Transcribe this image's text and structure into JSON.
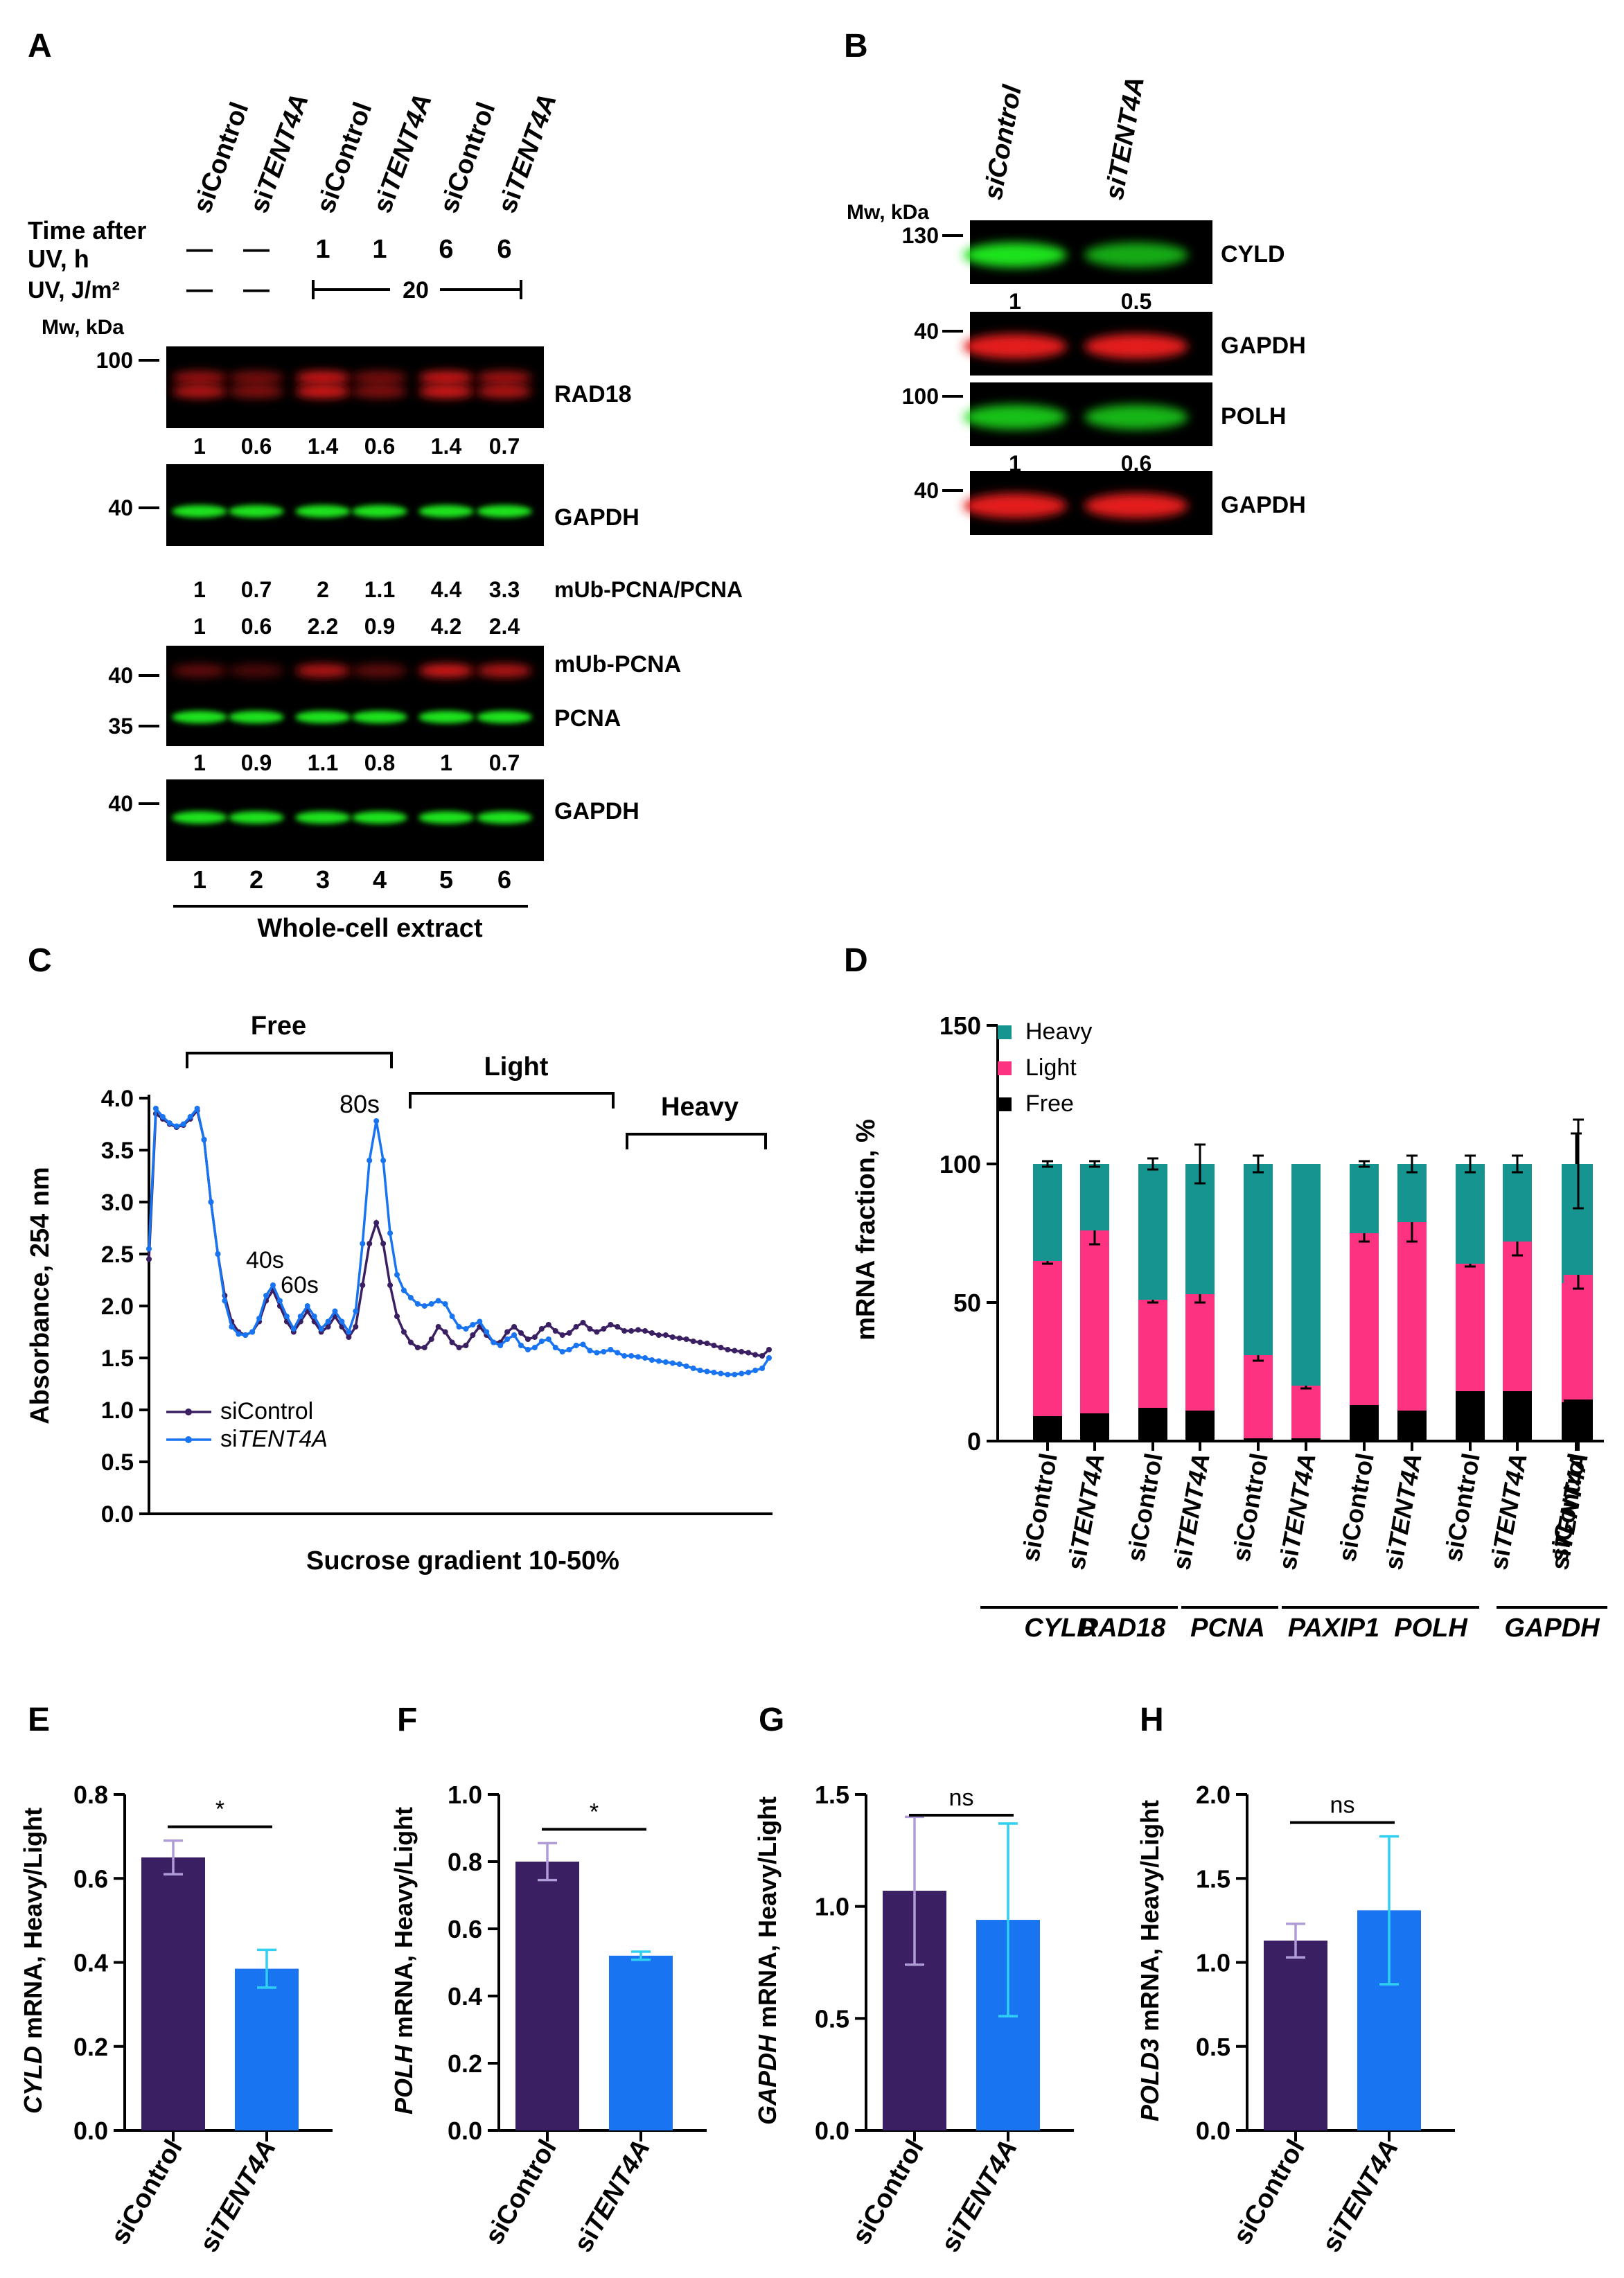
{
  "panel_letters": [
    "A",
    "B",
    "C",
    "D",
    "E",
    "F",
    "G",
    "H"
  ],
  "colors": {
    "dark_purple": "#3a1f62",
    "blue": "#1874f0",
    "teal": "#16948f",
    "pink": "#fd3280",
    "black": "#000000",
    "lightpurple": "#b09cd7",
    "cyan": "#2fd0f2",
    "blot_red": "#e41a1a",
    "blot_green": "#1be31b"
  },
  "panel_A": {
    "lanes_labels": [
      "siControl",
      "siTENT4A",
      "siControl",
      "siTENT4A",
      "siControl",
      "siTENT4A"
    ],
    "time_label_1": "Time after",
    "time_label_2": "UV, h",
    "time_values": [
      "—",
      "—",
      "1",
      "1",
      "6",
      "6"
    ],
    "uv_label": "UV, J/m²",
    "uv_values": [
      "—",
      "—"
    ],
    "uv_dose": "20",
    "mw_label": "Mw, kDa",
    "blots": [
      {
        "name": "RAD18",
        "mw": [
          "100"
        ],
        "quant": [
          "1",
          "0.6",
          "1.4",
          "0.6",
          "1.4",
          "0.7"
        ]
      },
      {
        "name": "GAPDH",
        "mw": [
          "40"
        ]
      },
      {
        "ratio_label": "mUb-PCNA/PCNA",
        "ratio": [
          "1",
          "0.7",
          "2",
          "1.1",
          "4.4",
          "3.3"
        ],
        "quant": [
          "1",
          "0.6",
          "2.2",
          "0.9",
          "4.2",
          "2.4"
        ]
      },
      {
        "name": "mUb-PCNA",
        "name2": "PCNA",
        "mw": [
          "40",
          "35"
        ],
        "quant": [
          "1",
          "0.9",
          "1.1",
          "0.8",
          "1",
          "0.7"
        ]
      },
      {
        "name": "GAPDH",
        "mw": [
          "40"
        ]
      }
    ],
    "lane_numbers": [
      "1",
      "2",
      "3",
      "4",
      "5",
      "6"
    ],
    "footer": "Whole-cell extract"
  },
  "panel_B": {
    "lanes_labels": [
      "siControl",
      "siTENT4A"
    ],
    "mw_label": "Mw, kDa",
    "blots": [
      {
        "name": "CYLD",
        "mw": "130",
        "quant": [
          "1",
          "0.5"
        ]
      },
      {
        "name": "GAPDH",
        "mw": "40"
      },
      {
        "name": "POLH",
        "mw": "100",
        "quant": [
          "1",
          "0.6"
        ]
      },
      {
        "name": "GAPDH",
        "mw": "40"
      }
    ]
  },
  "chart_data": [
    {
      "panel": "C",
      "type": "line",
      "xlabel": "Sucrose gradient 10-50%",
      "ylabel": "Absorbance, 254 nm",
      "ylim": [
        0,
        4.0
      ],
      "yticks": [
        "0.0",
        "0.5",
        "1.0",
        "1.5",
        "2.0",
        "2.5",
        "3.0",
        "3.5",
        "4.0"
      ],
      "fractions": [
        "Free",
        "Light",
        "Heavy"
      ],
      "peak_labels": [
        "80s",
        "40s",
        "60s"
      ],
      "series": [
        {
          "name": "siControl",
          "color": "#3a1f62",
          "values": [
            2.45,
            3.85,
            3.8,
            3.75,
            3.72,
            3.74,
            3.8,
            3.88,
            3.6,
            3.0,
            2.5,
            2.1,
            1.85,
            1.75,
            1.72,
            1.75,
            1.85,
            2.05,
            2.15,
            2.0,
            1.85,
            1.75,
            1.85,
            1.95,
            1.85,
            1.75,
            1.8,
            1.9,
            1.8,
            1.7,
            1.8,
            2.2,
            2.6,
            2.8,
            2.6,
            2.2,
            1.9,
            1.75,
            1.65,
            1.6,
            1.6,
            1.68,
            1.8,
            1.75,
            1.65,
            1.6,
            1.62,
            1.72,
            1.8,
            1.72,
            1.65,
            1.65,
            1.75,
            1.8,
            1.74,
            1.68,
            1.7,
            1.78,
            1.82,
            1.76,
            1.72,
            1.74,
            1.8,
            1.84,
            1.78,
            1.75,
            1.78,
            1.82,
            1.8,
            1.76,
            1.76,
            1.77,
            1.76,
            1.74,
            1.72,
            1.72,
            1.7,
            1.69,
            1.68,
            1.66,
            1.65,
            1.64,
            1.62,
            1.6,
            1.58,
            1.57,
            1.56,
            1.55,
            1.53,
            1.52,
            1.58
          ]
        },
        {
          "name": "siTENT4A",
          "color": "#1874f0",
          "values": [
            2.55,
            3.9,
            3.82,
            3.76,
            3.73,
            3.75,
            3.82,
            3.9,
            3.6,
            3.0,
            2.5,
            2.05,
            1.8,
            1.73,
            1.72,
            1.75,
            1.88,
            2.1,
            2.2,
            2.05,
            1.9,
            1.78,
            1.9,
            2.0,
            1.9,
            1.78,
            1.85,
            1.95,
            1.85,
            1.75,
            1.95,
            2.6,
            3.4,
            3.78,
            3.4,
            2.7,
            2.3,
            2.15,
            2.08,
            2.02,
            2.0,
            2.02,
            2.05,
            2.02,
            1.9,
            1.8,
            1.78,
            1.82,
            1.85,
            1.75,
            1.65,
            1.62,
            1.68,
            1.72,
            1.62,
            1.58,
            1.6,
            1.66,
            1.68,
            1.6,
            1.56,
            1.58,
            1.62,
            1.63,
            1.57,
            1.55,
            1.56,
            1.58,
            1.55,
            1.52,
            1.52,
            1.51,
            1.5,
            1.48,
            1.47,
            1.46,
            1.45,
            1.44,
            1.42,
            1.4,
            1.38,
            1.37,
            1.36,
            1.35,
            1.34,
            1.34,
            1.35,
            1.36,
            1.38,
            1.4,
            1.5
          ]
        }
      ]
    },
    {
      "panel": "D",
      "type": "bar",
      "stacked": true,
      "ylabel": "mRNA fraction, %",
      "ylim": [
        0,
        150
      ],
      "yticks": [
        "0",
        "50",
        "100",
        "150"
      ],
      "categories": [
        "siControl",
        "siTENT4A",
        "siControl",
        "siTENT4A",
        "siControl",
        "siTENT4A",
        "siControl",
        "siTENT4A",
        "siControl",
        "siTENT4A",
        "siControl",
        "siTENT4A"
      ],
      "groups": [
        "CYLD",
        "RAD18",
        "PCNA",
        "PAXIP1",
        "POLH",
        "GAPDH"
      ],
      "legend": [
        "Heavy",
        "Light",
        "Free"
      ],
      "series": [
        {
          "name": "Free",
          "color": "#000000",
          "values": [
            9,
            10,
            12,
            11,
            1,
            1,
            13,
            11,
            18,
            18,
            14,
            15
          ],
          "err": [
            0,
            3,
            1,
            4,
            0,
            1,
            2,
            4,
            4,
            8,
            7,
            11
          ]
        },
        {
          "name": "Light",
          "color": "#fd3280",
          "values": [
            56,
            66,
            39,
            42,
            30,
            19,
            62,
            68,
            46,
            54,
            43,
            45
          ],
          "err": [
            1,
            5,
            1,
            3,
            2,
            1,
            3,
            7,
            1,
            5,
            2,
            5
          ]
        },
        {
          "name": "Heavy",
          "color": "#16948f",
          "values": [
            35,
            24,
            49,
            47,
            69,
            80,
            25,
            21,
            36,
            28,
            43,
            40
          ],
          "err": [
            1,
            1,
            2,
            7,
            3,
            0,
            1,
            3,
            3,
            3,
            11,
            16
          ]
        }
      ]
    },
    {
      "panel": "E",
      "type": "bar",
      "ylabel_italic": "CYLD",
      "ylabel_rest": " mRNA, Heavy/Light",
      "ylim": [
        0,
        0.8
      ],
      "yticks": [
        "0.0",
        "0.2",
        "0.4",
        "0.6",
        "0.8"
      ],
      "categories": [
        "siControl",
        "siTENT4A"
      ],
      "values": [
        0.65,
        0.385
      ],
      "err": [
        0.04,
        0.045
      ],
      "sig": "*"
    },
    {
      "panel": "F",
      "type": "bar",
      "ylabel_italic": "POLH",
      "ylabel_rest": " mRNA, Heavy/Light",
      "ylim": [
        0,
        1.0
      ],
      "yticks": [
        "0.0",
        "0.2",
        "0.4",
        "0.6",
        "0.8",
        "1.0"
      ],
      "categories": [
        "siControl",
        "siTENT4A"
      ],
      "values": [
        0.8,
        0.52
      ],
      "err": [
        0.055,
        0.012
      ],
      "sig": "*"
    },
    {
      "panel": "G",
      "type": "bar",
      "ylabel_italic": "GAPDH",
      "ylabel_rest": " mRNA, Heavy/Light",
      "ylim": [
        0,
        1.5
      ],
      "yticks": [
        "0.0",
        "0.5",
        "1.0",
        "1.5"
      ],
      "categories": [
        "siControl",
        "siTENT4A"
      ],
      "values": [
        1.07,
        0.94
      ],
      "err": [
        0.33,
        0.43
      ],
      "sig": "ns"
    },
    {
      "panel": "H",
      "type": "bar",
      "ylabel_italic": "POLD3",
      "ylabel_rest": " mRNA, Heavy/Light",
      "ylim": [
        0,
        2.0
      ],
      "yticks": [
        "0.0",
        "0.5",
        "1.0",
        "1.5",
        "2.0"
      ],
      "categories": [
        "siControl",
        "siTENT4A"
      ],
      "values": [
        1.13,
        1.31
      ],
      "err": [
        0.1,
        0.44
      ],
      "sig": "ns"
    }
  ]
}
